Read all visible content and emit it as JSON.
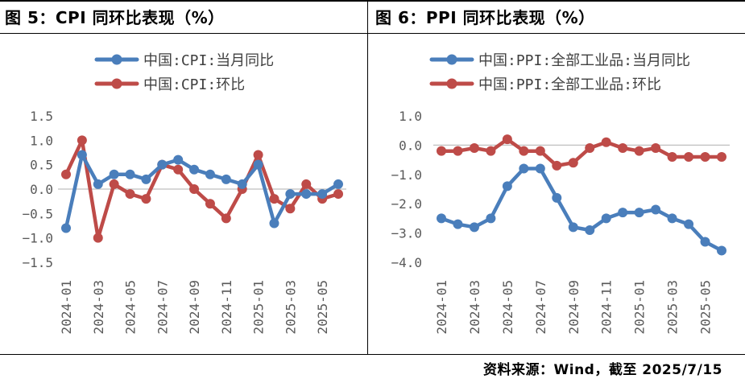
{
  "figures": [
    {
      "title": "图 5：CPI 同环比表现（%）"
    },
    {
      "title": "图 6：PPI 同环比表现（%）"
    }
  ],
  "source": "资料来源：Wind，截至 2025/7/15",
  "colors": {
    "blue": "#4A7EBB",
    "red": "#BE4B48",
    "axis": "#BFBFBF",
    "tick_text": "#595959"
  },
  "chart_data": [
    {
      "type": "line",
      "title": "",
      "categories": [
        "2024-01",
        "2024-02",
        "2024-03",
        "2024-04",
        "2024-05",
        "2024-06",
        "2024-07",
        "2024-08",
        "2024-09",
        "2024-10",
        "2024-11",
        "2024-12",
        "2025-01",
        "2025-02",
        "2025-03",
        "2025-04",
        "2025-05",
        "2025-06"
      ],
      "x_tick_labels": [
        "2024-01",
        "2024-03",
        "2024-05",
        "2024-07",
        "2024-09",
        "2024-11",
        "2025-01",
        "2025-03",
        "2025-05"
      ],
      "y_tick_labels": [
        "1.5",
        "1.0",
        "0.5",
        "0.0",
        "−0.5",
        "−1.0",
        "−1.5"
      ],
      "ylim": [
        -1.5,
        1.5
      ],
      "legend_position": "top",
      "grid": false,
      "series": [
        {
          "name": "中国:CPI:当月同比",
          "color": "#4A7EBB",
          "values": [
            -0.8,
            0.7,
            0.1,
            0.3,
            0.3,
            0.2,
            0.5,
            0.6,
            0.4,
            0.3,
            0.2,
            0.1,
            0.5,
            -0.7,
            -0.1,
            -0.1,
            -0.1,
            0.1
          ]
        },
        {
          "name": "中国:CPI:环比",
          "color": "#BE4B48",
          "values": [
            0.3,
            1.0,
            -1.0,
            0.1,
            -0.1,
            -0.2,
            0.5,
            0.4,
            0.0,
            -0.3,
            -0.6,
            0.0,
            0.7,
            -0.2,
            -0.4,
            0.1,
            -0.2,
            -0.1
          ]
        }
      ]
    },
    {
      "type": "line",
      "title": "",
      "categories": [
        "2024-01",
        "2024-02",
        "2024-03",
        "2024-04",
        "2024-05",
        "2024-06",
        "2024-07",
        "2024-08",
        "2024-09",
        "2024-10",
        "2024-11",
        "2024-12",
        "2025-01",
        "2025-02",
        "2025-03",
        "2025-04",
        "2025-05",
        "2025-06"
      ],
      "x_tick_labels": [
        "2024-01",
        "2024-03",
        "2024-05",
        "2024-07",
        "2024-09",
        "2024-11",
        "2025-01",
        "2025-03",
        "2025-05"
      ],
      "y_tick_labels": [
        "1.0",
        "0.0",
        "−1.0",
        "−2.0",
        "−3.0",
        "−4.0"
      ],
      "ylim": [
        -4.0,
        1.0
      ],
      "legend_position": "top",
      "grid": false,
      "series": [
        {
          "name": "中国:PPI:全部工业品:当月同比",
          "color": "#4A7EBB",
          "values": [
            -2.5,
            -2.7,
            -2.8,
            -2.5,
            -1.4,
            -0.8,
            -0.8,
            -1.8,
            -2.8,
            -2.9,
            -2.5,
            -2.3,
            -2.3,
            -2.2,
            -2.5,
            -2.7,
            -3.3,
            -3.6
          ]
        },
        {
          "name": "中国:PPI:全部工业品:环比",
          "color": "#BE4B48",
          "values": [
            -0.2,
            -0.2,
            -0.1,
            -0.2,
            0.2,
            -0.2,
            -0.2,
            -0.7,
            -0.6,
            -0.1,
            0.1,
            -0.1,
            -0.2,
            -0.1,
            -0.4,
            -0.4,
            -0.4,
            -0.4
          ]
        }
      ]
    }
  ]
}
